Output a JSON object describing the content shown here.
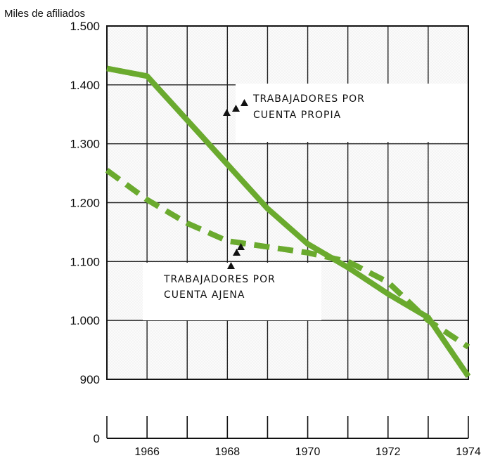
{
  "chart_data": {
    "type": "line",
    "ylabel": "Miles de afiliados",
    "ylim": [
      900,
      1500
    ],
    "yticks": [
      {
        "value": 1500,
        "label": "1.500"
      },
      {
        "value": 1400,
        "label": "1.400"
      },
      {
        "value": 1300,
        "label": "1.300"
      },
      {
        "value": 1200,
        "label": "1.200"
      },
      {
        "value": 1100,
        "label": "1.100"
      },
      {
        "value": 1000,
        "label": "1.000"
      },
      {
        "value": 900,
        "label": "900"
      }
    ],
    "baseline_tick": {
      "value": 0,
      "label": "0"
    },
    "xlim": [
      1965,
      1974
    ],
    "xticks": [
      {
        "value": 1966,
        "label": "1966"
      },
      {
        "value": 1968,
        "label": "1968"
      },
      {
        "value": 1970,
        "label": "1970"
      },
      {
        "value": 1972,
        "label": "1972"
      },
      {
        "value": 1974,
        "label": "1974"
      }
    ],
    "grid": true,
    "series": [
      {
        "name": "TRABAJADORES POR CUENTA PROPIA",
        "style": "solid",
        "color": "#6aaa2e",
        "x": [
          1965,
          1966,
          1967,
          1968,
          1969,
          1970,
          1971,
          1972,
          1973,
          1974
        ],
        "y": [
          1428,
          1415,
          1340,
          1265,
          1190,
          1130,
          1090,
          1045,
          1005,
          905
        ]
      },
      {
        "name": "TRABAJADORES POR CUENTA AJENA",
        "style": "dashed",
        "color": "#6aaa2e",
        "x": [
          1965,
          1966,
          1967,
          1968,
          1969,
          1970,
          1971,
          1972,
          1973,
          1974
        ],
        "y": [
          1255,
          1205,
          1165,
          1135,
          1125,
          1115,
          1100,
          1065,
          1000,
          955
        ]
      }
    ],
    "annotations": [
      {
        "lines": [
          "TRABAJADORES POR",
          "CUENTA PROPIA"
        ]
      },
      {
        "lines": [
          "TRABAJADORES POR",
          "CUENTA AJENA"
        ]
      }
    ]
  }
}
